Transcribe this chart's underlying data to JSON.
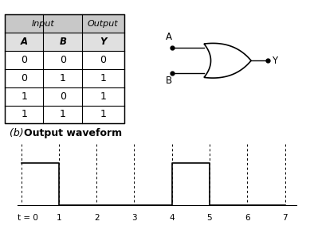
{
  "table_input_header": "Input",
  "table_output_header": "Output",
  "col_A": "A",
  "col_B": "B",
  "col_Y": "Y",
  "rows": [
    [
      0,
      0,
      0
    ],
    [
      0,
      1,
      1
    ],
    [
      1,
      0,
      1
    ],
    [
      1,
      1,
      1
    ]
  ],
  "gate_label_A": "A",
  "gate_label_B": "B",
  "gate_label_Y": "Y",
  "waveform_x": [
    0,
    1,
    1,
    4,
    4,
    5,
    5,
    7
  ],
  "waveform_y": [
    1,
    1,
    0,
    0,
    1,
    1,
    0,
    0
  ],
  "dashed_x": [
    0,
    1,
    2,
    3,
    4,
    5,
    6,
    7
  ],
  "xtick_labels": [
    "0",
    "1",
    "2",
    "3",
    "4",
    "5",
    "6",
    "7"
  ],
  "table_header_bg": "#c8c8c8",
  "table_subhdr_bg": "#e0e0e0"
}
